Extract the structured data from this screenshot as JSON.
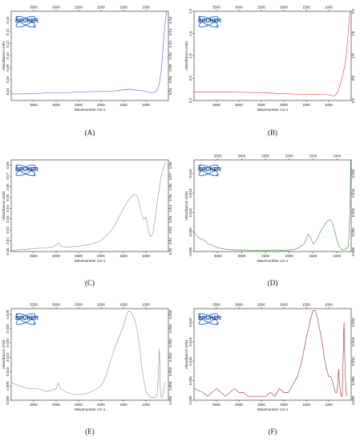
{
  "logo_text": "BRUKER",
  "chart_data": [
    {
      "type": "line",
      "panel_label": "(A)",
      "xlabel": "Wavenumber cm-1",
      "ylabel": "Absorbance Units",
      "xlim": [
        4000,
        500
      ],
      "ylim": [
        0.025,
        0.175
      ],
      "x_ticks": [
        3500,
        3000,
        2500,
        2000,
        1500,
        1000
      ],
      "y_ticks": [
        0.04,
        0.06,
        0.08,
        0.1,
        0.12,
        0.14,
        0.16
      ],
      "top_ticks": true,
      "right_ticks": true,
      "color": "#4a4adc",
      "series": [
        {
          "x": [
            4000,
            3700,
            3400,
            3100,
            2800,
            2500,
            2200,
            1900,
            1700,
            1500,
            1350,
            1200,
            1050,
            950,
            850,
            780,
            740,
            700,
            660,
            620,
            580,
            540
          ],
          "y": [
            0.036,
            0.036,
            0.037,
            0.038,
            0.038,
            0.039,
            0.04,
            0.04,
            0.041,
            0.043,
            0.044,
            0.042,
            0.041,
            0.039,
            0.038,
            0.04,
            0.044,
            0.055,
            0.075,
            0.11,
            0.15,
            0.175
          ]
        }
      ]
    },
    {
      "type": "line",
      "panel_label": "(B)",
      "xlabel": "Wavenumber cm-1",
      "ylabel": "Absorbance Units",
      "xlim": [
        4000,
        500
      ],
      "ylim": [
        0,
        2.0
      ],
      "x_ticks": [
        3500,
        3000,
        2500,
        2000,
        1500,
        1000
      ],
      "y_ticks": [
        0.0,
        0.5,
        1.0,
        1.5,
        2.0
      ],
      "top_ticks": true,
      "right_ticks": true,
      "color": "#e03030",
      "series": [
        {
          "x": [
            4000,
            3600,
            3200,
            2800,
            2400,
            2000,
            1700,
            1400,
            1200,
            1050,
            950,
            900,
            850,
            800,
            760,
            720,
            680,
            640,
            600,
            560,
            530
          ],
          "y": [
            0.19,
            0.19,
            0.19,
            0.18,
            0.17,
            0.15,
            0.14,
            0.14,
            0.13,
            0.13,
            0.12,
            0.1,
            0.12,
            0.2,
            0.3,
            0.45,
            0.6,
            0.8,
            1.1,
            1.6,
            2.0
          ]
        }
      ]
    },
    {
      "type": "line",
      "panel_label": "(C)",
      "xlabel": "Wavenumber cm-1",
      "ylabel": "Absorbance Units",
      "xlim": [
        4000,
        500
      ],
      "ylim": [
        0,
        0.085
      ],
      "x_ticks": [
        3500,
        3000,
        2500,
        2000,
        1500,
        1000
      ],
      "y_ticks": [
        0.0,
        0.01,
        0.02,
        0.03,
        0.04,
        0.05,
        0.06,
        0.07,
        0.08
      ],
      "top_ticks": false,
      "right_ticks": true,
      "color": "#888888",
      "series": [
        {
          "x": [
            4000,
            3700,
            3400,
            3100,
            3000,
            2950,
            2900,
            2800,
            2500,
            2200,
            2000,
            1800,
            1700,
            1600,
            1500,
            1400,
            1300,
            1250,
            1200,
            1150,
            1100,
            1050,
            1000,
            980,
            950,
            900,
            850,
            800,
            750,
            700,
            650,
            600,
            560
          ],
          "y": [
            0.001,
            0.002,
            0.003,
            0.004,
            0.006,
            0.008,
            0.005,
            0.004,
            0.005,
            0.007,
            0.01,
            0.018,
            0.024,
            0.032,
            0.04,
            0.047,
            0.052,
            0.053,
            0.052,
            0.045,
            0.035,
            0.03,
            0.032,
            0.028,
            0.02,
            0.014,
            0.016,
            0.028,
            0.045,
            0.06,
            0.072,
            0.079,
            0.083
          ]
        }
      ]
    },
    {
      "type": "line",
      "panel_label": "(D)",
      "xlabel": "Wavenumber cm-1",
      "ylabel": "Absorbance Units",
      "xlim": [
        4000,
        700
      ],
      "ylim": [
        0,
        0.0235
      ],
      "x_ticks": [
        3500,
        3000,
        2500,
        2000,
        1500,
        1000
      ],
      "y_ticks": [
        0.0,
        0.005,
        0.01,
        0.015,
        0.02
      ],
      "top_ticks": true,
      "right_ticks": true,
      "color": "#2a8a2a",
      "series": [
        {
          "x": [
            4000,
            3900,
            3800,
            3700,
            3600,
            3500,
            3300,
            3100,
            2900,
            2700,
            2500,
            2300,
            2100,
            1900,
            1800,
            1700,
            1650,
            1600,
            1550,
            1500,
            1450,
            1400,
            1350,
            1300,
            1250,
            1200,
            1150,
            1100,
            1050,
            1000,
            950,
            900,
            850,
            800,
            760,
            740,
            720,
            710
          ],
          "y": [
            0.005,
            0.0035,
            0.003,
            0.002,
            0.0015,
            0.001,
            0.0005,
            0.0004,
            0.0004,
            0.0003,
            0.0003,
            0.0004,
            0.0003,
            0.0005,
            0.001,
            0.0018,
            0.003,
            0.0045,
            0.0035,
            0.002,
            0.0025,
            0.0035,
            0.005,
            0.006,
            0.007,
            0.0078,
            0.0082,
            0.0075,
            0.0055,
            0.003,
            0.0012,
            0.0006,
            0.0004,
            0.0008,
            0.0015,
            0.005,
            0.015,
            0.0235
          ]
        }
      ]
    },
    {
      "type": "line",
      "panel_label": "(E)",
      "xlabel": "Wavenumber cm-1",
      "ylabel": "Absorbance Units",
      "xlim": [
        4000,
        500
      ],
      "ylim": [
        0,
        0.032
      ],
      "x_ticks": [
        3500,
        3000,
        2500,
        2000,
        1500,
        1000
      ],
      "y_ticks": [
        0.0,
        0.005,
        0.01,
        0.015,
        0.02,
        0.025,
        0.03
      ],
      "top_ticks": true,
      "right_ticks": true,
      "color": "#888888",
      "series": [
        {
          "x": [
            4000,
            3800,
            3600,
            3400,
            3200,
            3000,
            2950,
            2900,
            2800,
            2600,
            2400,
            2200,
            2000,
            1900,
            1800,
            1700,
            1600,
            1500,
            1450,
            1400,
            1350,
            1300,
            1250,
            1200,
            1150,
            1100,
            1000,
            900,
            800,
            750,
            720,
            700,
            680,
            660,
            640,
            620,
            600,
            580,
            560
          ],
          "y": [
            0.006,
            0.005,
            0.004,
            0.004,
            0.003,
            0.004,
            0.006,
            0.004,
            0.003,
            0.002,
            0.002,
            0.003,
            0.005,
            0.008,
            0.013,
            0.018,
            0.022,
            0.026,
            0.029,
            0.031,
            0.031,
            0.03,
            0.028,
            0.025,
            0.02,
            0.012,
            0.003,
            0.001,
            0.001,
            0.002,
            0.01,
            0.018,
            0.004,
            0.001,
            0.001,
            0.002,
            0.004,
            0.006,
            0.006
          ]
        }
      ]
    },
    {
      "type": "line",
      "panel_label": "(F)",
      "xlabel": "Wavenumber cm-1",
      "ylabel": "Absorbance Units",
      "xlim": [
        4000,
        500
      ],
      "ylim": [
        0,
        0.0235
      ],
      "x_ticks": [
        3500,
        3000,
        2500,
        2000,
        1500,
        1000
      ],
      "y_ticks": [
        0.0,
        0.005,
        0.01,
        0.015,
        0.02
      ],
      "top_ticks": true,
      "right_ticks": true,
      "color": "#8b1a1a",
      "series": [
        {
          "x": [
            4000,
            3800,
            3700,
            3600,
            3500,
            3400,
            3300,
            3200,
            3100,
            3000,
            2900,
            2800,
            2600,
            2400,
            2300,
            2200,
            2100,
            2000,
            1900,
            1800,
            1700,
            1600,
            1500,
            1400,
            1350,
            1300,
            1250,
            1200,
            1150,
            1100,
            1050,
            1000,
            950,
            900,
            850,
            820,
            800,
            780,
            760,
            740,
            720,
            700,
            680,
            660,
            640,
            620,
            600
          ],
          "y": [
            0.003,
            0.002,
            0.001,
            0.002,
            0.003,
            0.002,
            0.001,
            0.002,
            0.003,
            0.002,
            0.002,
            0.001,
            0.001,
            0.001,
            0.002,
            0.001,
            0.003,
            0.002,
            0.002,
            0.004,
            0.006,
            0.01,
            0.016,
            0.021,
            0.023,
            0.023,
            0.021,
            0.018,
            0.015,
            0.011,
            0.008,
            0.006,
            0.006,
            0.004,
            0.002,
            0.002,
            0.004,
            0.008,
            0.004,
            0.002,
            0.001,
            0.001,
            0.01,
            0.02,
            0.01,
            0.003,
            0.001
          ]
        }
      ]
    }
  ]
}
